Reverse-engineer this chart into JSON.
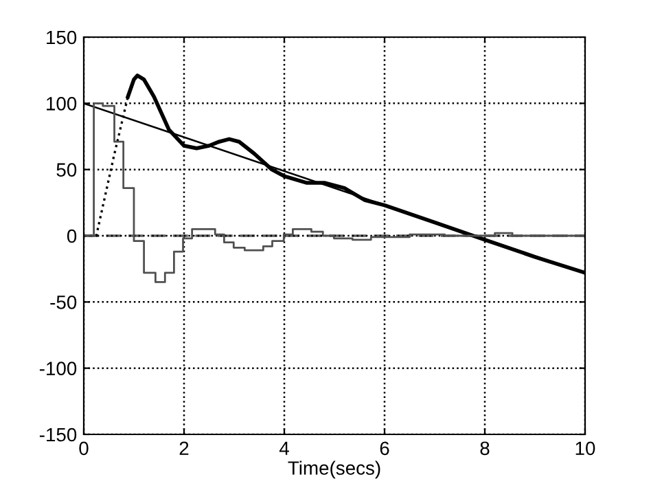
{
  "chart_data": {
    "type": "line",
    "xlabel": "Time(secs)",
    "xlim": [
      0,
      10
    ],
    "ylim": [
      -150,
      150
    ],
    "xticks": [
      0,
      2,
      4,
      6,
      8,
      10
    ],
    "yticks": [
      -150,
      -100,
      -50,
      0,
      50,
      100,
      150
    ],
    "grid": true,
    "marker": "none",
    "ref_lines": [
      {
        "axis": "y",
        "value": 0,
        "color": "#606060",
        "line_style": "dashed"
      }
    ],
    "series": [
      {
        "color": "#000000",
        "line_style": "solid",
        "x": [
          0,
          10
        ],
        "values": [
          100,
          -28
        ]
      },
      {
        "color": "#000000",
        "line_style": "dotted",
        "x": [
          0,
          0.25,
          0.6,
          0.88
        ],
        "values": [
          0,
          0,
          60,
          105
        ]
      },
      {
        "color": "#000000",
        "line_style": "solid",
        "x": [
          0.88,
          1.0,
          1.07,
          1.2,
          1.4,
          1.7,
          2.0,
          2.25,
          2.5,
          2.7,
          2.9,
          3.1,
          3.4,
          3.75,
          4.0,
          4.44,
          4.8,
          5.2,
          5.6,
          6.0,
          7.0,
          8.0,
          9.0,
          10.0
        ],
        "values": [
          105,
          118,
          121,
          118,
          105,
          80,
          68,
          66,
          68,
          71,
          73,
          71,
          62,
          50,
          45,
          40,
          40,
          36,
          27,
          23,
          10,
          -3,
          -16,
          -28
        ]
      },
      {
        "type": "step",
        "color": "#505050",
        "line_style": "solid",
        "x": [
          0,
          0.2,
          0.38,
          0.61,
          0.79,
          1.0,
          1.2,
          1.43,
          1.62,
          1.8,
          1.98,
          2.16,
          2.62,
          2.8,
          2.99,
          3.21,
          3.58,
          3.76,
          3.99,
          4.17,
          4.54,
          4.77,
          4.99,
          5.36,
          5.73,
          6.5,
          7.2,
          8.2,
          8.55,
          10
        ],
        "values": [
          0,
          100,
          98,
          71,
          36,
          -4,
          -28,
          -35,
          -28,
          -12,
          -2,
          5,
          1,
          -5,
          -9,
          -11,
          -8,
          -4,
          1,
          5,
          3,
          0,
          -2,
          -3,
          -1,
          1,
          0,
          2,
          0,
          0
        ]
      }
    ]
  }
}
